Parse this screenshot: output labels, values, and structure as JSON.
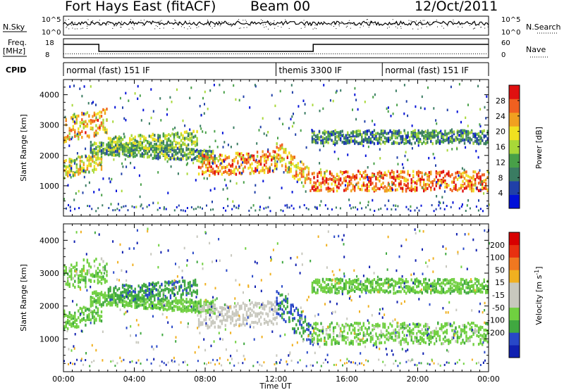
{
  "header": {
    "station": "Fort Hays East (fitACF)",
    "beam": "Beam 00",
    "date": "12/Oct/2011"
  },
  "summary": {
    "nsky_label": "N.Sky",
    "nsearch_label": "N.Search",
    "freq_label": "Freq.",
    "freq_unit": "[MHz]",
    "nave_label": "Nave",
    "cpid_label": "CPID",
    "noise_left_ticks": [
      "10^5",
      "10^0"
    ],
    "noise_right_ticks": [
      "10^5",
      "10^0"
    ],
    "freq_left_ticks": [
      "18",
      "8"
    ],
    "freq_right_ticks": [
      "60",
      "0"
    ],
    "cpid_segments": [
      {
        "label": "normal (fast) 151 IF",
        "start_hour": 0,
        "end_hour": 12
      },
      {
        "label": "themis 3300 IF",
        "start_hour": 12,
        "end_hour": 18
      },
      {
        "label": "normal (fast) 151 IF",
        "start_hour": 18,
        "end_hour": 24
      }
    ]
  },
  "colors": {
    "power_scale": [
      "#0010d8",
      "#2040a8",
      "#3a7c62",
      "#48a048",
      "#a8d838",
      "#f0e020",
      "#f0a020",
      "#f06020",
      "#e01010"
    ],
    "velocity_scale": [
      "#1020b0",
      "#2848c8",
      "#40a840",
      "#70d040",
      "#c8c8be",
      "#c8c8be",
      "#f0b020",
      "#f07820",
      "#e83010",
      "#d80000"
    ]
  },
  "chart_data": [
    {
      "type": "heatmap",
      "name": "power",
      "ylabel": "Slant Range [km]",
      "yticks": [
        1000,
        2000,
        3000,
        4000
      ],
      "ylim": [
        0,
        4500
      ],
      "xlim": [
        0,
        24
      ],
      "colorbar_label": "Power [dB]",
      "colorbar_ticks": [
        4,
        8,
        12,
        16,
        20,
        24,
        28
      ],
      "colorbar_range": [
        0,
        32
      ]
    },
    {
      "type": "heatmap",
      "name": "velocity",
      "ylabel": "Slant Range [km]",
      "yticks": [
        1000,
        2000,
        3000,
        4000
      ],
      "ylim": [
        0,
        4500
      ],
      "xlim": [
        0,
        24
      ],
      "xlabel": "Time UT",
      "xticks": [
        "00:00",
        "04:00",
        "08:00",
        "12:00",
        "16:00",
        "20:00",
        "00:00"
      ],
      "colorbar_label": "Velocity [m s",
      "colorbar_label_sup": "-1",
      "colorbar_label_close": "]",
      "colorbar_ticks": [
        "200",
        "100",
        "50",
        "15",
        "-15",
        "-50",
        "-100",
        "-200"
      ]
    }
  ]
}
